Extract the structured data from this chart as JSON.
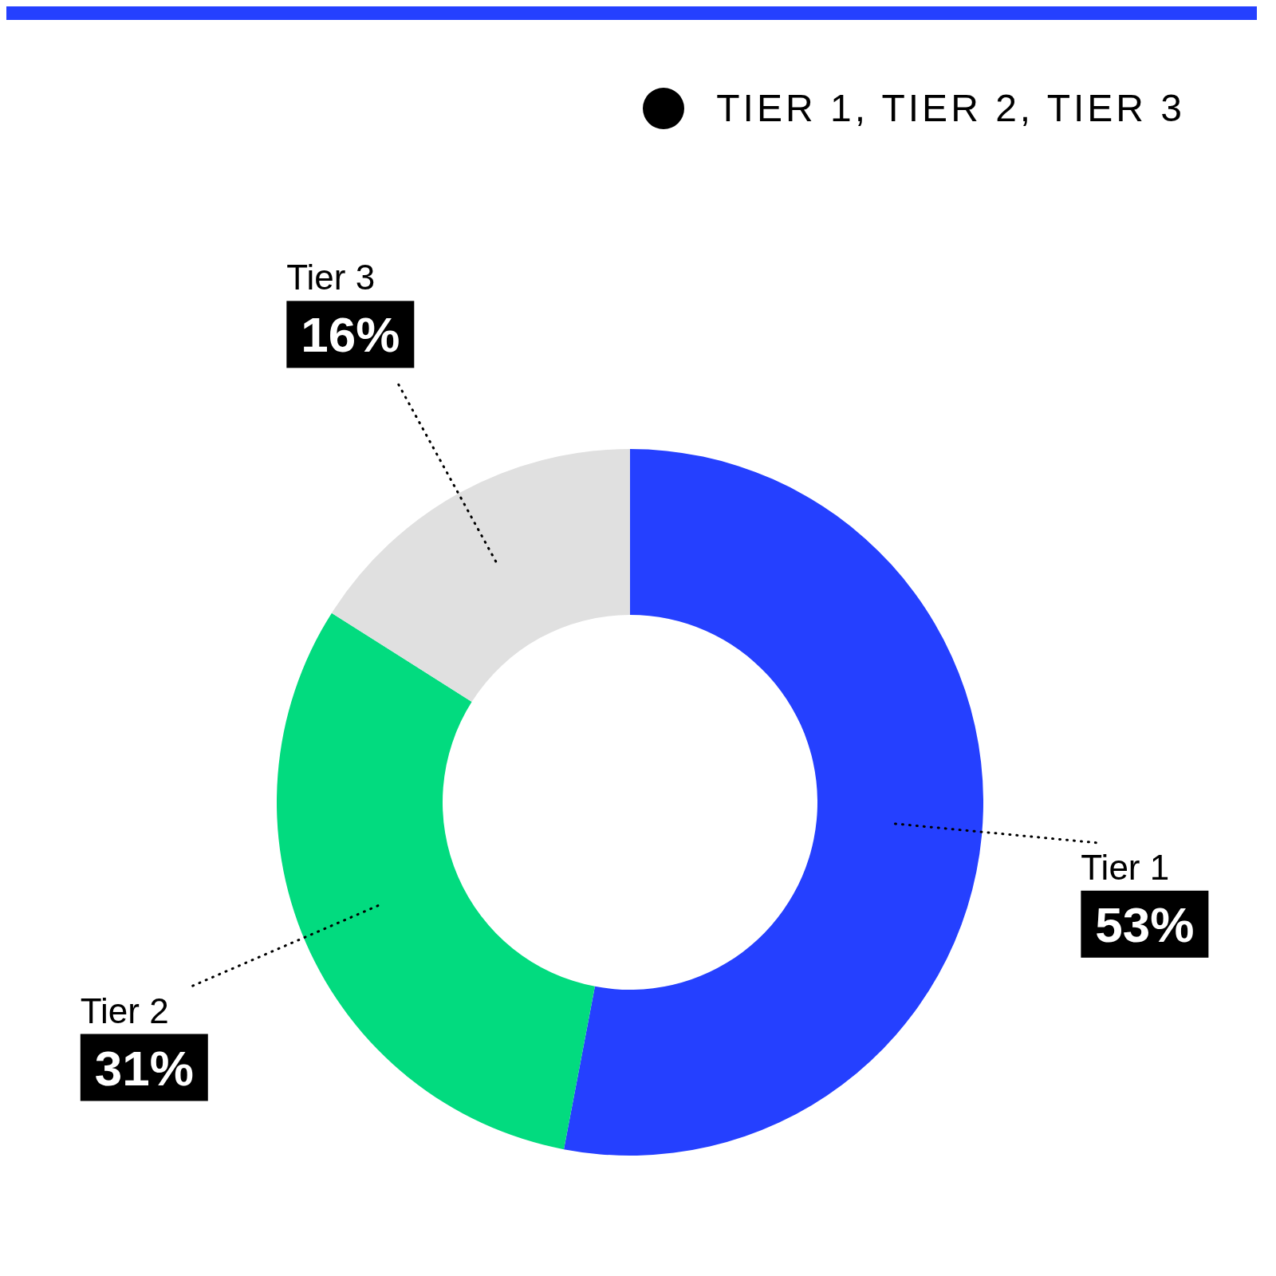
{
  "chart_data": {
    "type": "donut",
    "legend_title": "TIER 1, TIER 2, TIER 3",
    "categories": [
      "Tier 1",
      "Tier 2",
      "Tier 3"
    ],
    "values": [
      53,
      31,
      16
    ],
    "value_labels": [
      "53%",
      "31%",
      "16%"
    ],
    "colors": [
      "#2540ff",
      "#02db7f",
      "#e0e0e0"
    ]
  }
}
